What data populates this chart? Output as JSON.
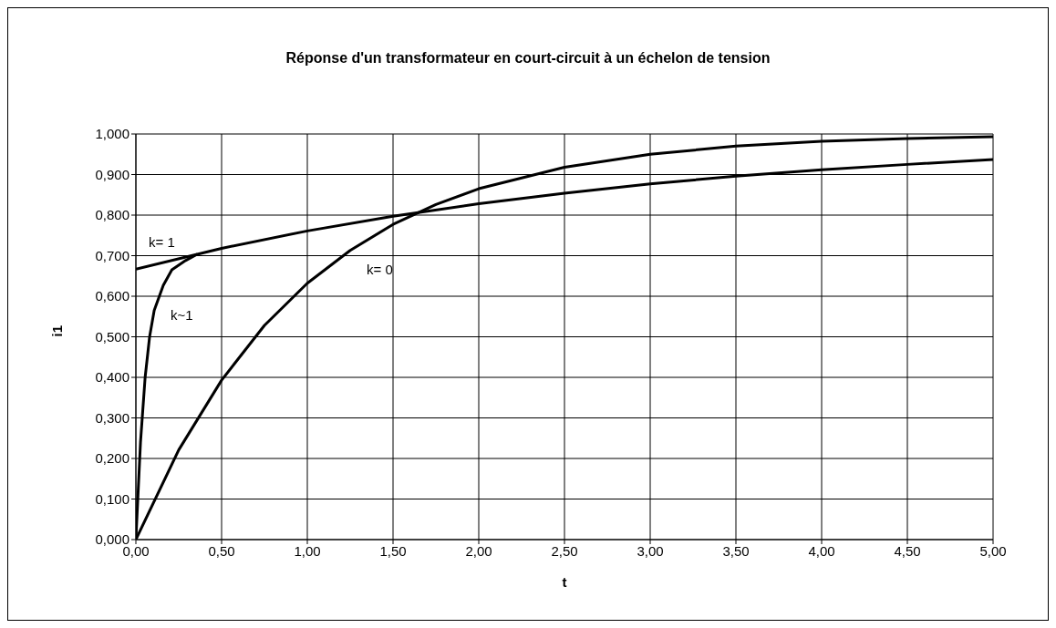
{
  "chart_data": {
    "type": "line",
    "title": "Réponse d'un transformateur en court-circuit à un échelon de tension",
    "xlabel": "t",
    "ylabel": "i1",
    "series": [
      {
        "name": "k= 1",
        "color": "#000000",
        "x": [
          0,
          0.5,
          1,
          1.5,
          2,
          2.5,
          3,
          3.5,
          4,
          4.5,
          5
        ],
        "values": [
          0.667,
          0.718,
          0.761,
          0.797,
          0.828,
          0.854,
          0.877,
          0.896,
          0.912,
          0.925,
          0.937
        ]
      },
      {
        "name": "k~1",
        "color": "#000000",
        "x": [
          0,
          0.027,
          0.054,
          0.08,
          0.107,
          0.16,
          0.21,
          0.29,
          0.36
        ],
        "values": [
          0,
          0.24,
          0.4,
          0.5,
          0.565,
          0.627,
          0.665,
          0.688,
          0.704
        ]
      },
      {
        "name": "k= 0",
        "color": "#000000",
        "x": [
          0,
          0.25,
          0.5,
          0.75,
          1,
          1.25,
          1.5,
          1.75,
          2,
          2.5,
          3,
          3.5,
          4,
          4.5,
          5
        ],
        "values": [
          0,
          0.221,
          0.393,
          0.528,
          0.632,
          0.713,
          0.777,
          0.826,
          0.865,
          0.918,
          0.95,
          0.97,
          0.982,
          0.989,
          0.993
        ]
      }
    ],
    "xlim": [
      0,
      5
    ],
    "xticks": [
      {
        "value": 0,
        "label": "0,00"
      },
      {
        "value": 0.5,
        "label": "0,50"
      },
      {
        "value": 1,
        "label": "1,00"
      },
      {
        "value": 1.5,
        "label": "1,50"
      },
      {
        "value": 2,
        "label": "2,00"
      },
      {
        "value": 2.5,
        "label": "2,50"
      },
      {
        "value": 3,
        "label": "3,00"
      },
      {
        "value": 3.5,
        "label": "3,50"
      },
      {
        "value": 4,
        "label": "4,00"
      },
      {
        "value": 4.5,
        "label": "4,50"
      },
      {
        "value": 5,
        "label": "5,00"
      }
    ],
    "ylim": [
      0,
      1
    ],
    "yticks": [
      {
        "value": 0,
        "label": "0,000"
      },
      {
        "value": 0.1,
        "label": "0,100"
      },
      {
        "value": 0.2,
        "label": "0,200"
      },
      {
        "value": 0.3,
        "label": "0,300"
      },
      {
        "value": 0.4,
        "label": "0,400"
      },
      {
        "value": 0.5,
        "label": "0,500"
      },
      {
        "value": 0.6,
        "label": "0,600"
      },
      {
        "value": 0.7,
        "label": "0,700"
      },
      {
        "value": 0.8,
        "label": "0,800"
      },
      {
        "value": 0.9,
        "label": "0,900"
      },
      {
        "value": 1,
        "label": "1,000"
      }
    ],
    "grid": true,
    "marker": "none",
    "line_style": "solid"
  }
}
